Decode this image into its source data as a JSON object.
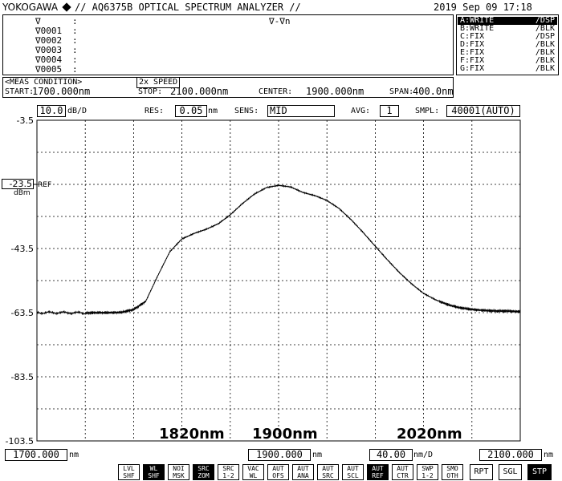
{
  "header": {
    "brand": "YOKOGAWA",
    "title": "// AQ6375B OPTICAL SPECTRUM ANALYZER //",
    "datetime": "2019 Sep 09 17:18"
  },
  "marker_panel": {
    "col_header": "∇-∇n",
    "rows": [
      "∇",
      "∇0001",
      "∇0002",
      "∇0003",
      "∇0004",
      "∇0005"
    ],
    "colon": ":"
  },
  "traces": [
    {
      "key": "A:WRITE",
      "mode": "/DSP",
      "active": true
    },
    {
      "key": "B:WRITE",
      "mode": "/BLK",
      "active": false
    },
    {
      "key": "C:FIX",
      "mode": "/DSP",
      "active": false
    },
    {
      "key": "D:FIX",
      "mode": "/BLK",
      "active": false
    },
    {
      "key": "E:FIX",
      "mode": "/BLK",
      "active": false
    },
    {
      "key": "F:FIX",
      "mode": "/BLK",
      "active": false
    },
    {
      "key": "G:FIX",
      "mode": "/BLK",
      "active": false
    }
  ],
  "meas": {
    "label": "<MEAS CONDITION>",
    "speed": "2x SPEED",
    "start_label": "START:",
    "start_value": "1700.000nm",
    "stop_label": "STOP:",
    "stop_value": "2100.000nm",
    "center_label": "CENTER:",
    "center_value": "1900.000nm",
    "span_label": "SPAN:",
    "span_value": "400.0nm"
  },
  "settings": {
    "scale_value": "10.0",
    "scale_unit": "dB/D",
    "res_label": "RES:",
    "res_value": "0.05",
    "res_unit": "nm",
    "sens_label": "SENS:",
    "sens_value": "MID",
    "avg_label": "AVG:",
    "avg_value": "1",
    "smpl_label": "SMPL:",
    "smpl_value": "40001(AUTO)"
  },
  "y_axis": {
    "ref_value": "-23.5",
    "ref_label": "REF",
    "unit": "dBm",
    "ticks": [
      "-3.5",
      "-43.5",
      "-63.5",
      "-83.5",
      "-103.5"
    ]
  },
  "annotations": [
    "1820nm",
    "1900nm",
    "2020nm"
  ],
  "bottom": {
    "start_value": "1700.000",
    "start_unit": "nm",
    "center_value": "1900.000",
    "center_unit": "nm",
    "div_value": "40.00",
    "div_unit": "nm/D",
    "stop_value": "2100.000",
    "stop_unit": "nm"
  },
  "buttons": [
    {
      "l1": "LVL",
      "l2": "SHF",
      "on": false
    },
    {
      "l1": "WL",
      "l2": "SHF",
      "on": true
    },
    {
      "l1": "NOI",
      "l2": "MSK",
      "on": false
    },
    {
      "l1": "SRC",
      "l2": "ZOM",
      "on": true
    },
    {
      "l1": "SRC",
      "l2": "1-2",
      "on": false
    },
    {
      "l1": "VAC",
      "l2": "WL",
      "on": false
    },
    {
      "l1": "AUT",
      "l2": "OFS",
      "on": false
    },
    {
      "l1": "AUT",
      "l2": "ANA",
      "on": false
    },
    {
      "l1": "AUT",
      "l2": "SRC",
      "on": false
    },
    {
      "l1": "AUT",
      "l2": "SCL",
      "on": false
    },
    {
      "l1": "AUT",
      "l2": "REF",
      "on": true
    },
    {
      "l1": "AUT",
      "l2": "CTR",
      "on": false
    },
    {
      "l1": "SWP",
      "l2": "1-2",
      "on": false
    },
    {
      "l1": "SMO",
      "l2": "OTH",
      "on": false
    }
  ],
  "sweep_buttons": [
    {
      "label": "RPT",
      "on": false
    },
    {
      "label": "SGL",
      "on": false
    },
    {
      "label": "STP",
      "on": true
    }
  ],
  "chart_data": {
    "type": "line",
    "xlabel": "",
    "ylabel": "",
    "xlim": [
      1700,
      2100
    ],
    "ylim": [
      -103.5,
      -3.5
    ],
    "x_unit": "nm",
    "y_unit": "dBm",
    "grid": true,
    "series": [
      {
        "color": "#000000",
        "x": [
          1700,
          1720,
          1740,
          1750,
          1760,
          1770,
          1780,
          1790,
          1800,
          1810,
          1820,
          1830,
          1840,
          1850,
          1860,
          1870,
          1880,
          1890,
          1900,
          1910,
          1920,
          1930,
          1940,
          1950,
          1960,
          1970,
          1980,
          1990,
          2000,
          2010,
          2020,
          2030,
          2040,
          2050,
          2060,
          2070,
          2080,
          2090,
          2100
        ],
        "y": [
          -63.5,
          -63.5,
          -63.6,
          -63.5,
          -63.5,
          -63.4,
          -62.5,
          -60.0,
          -52.0,
          -44.5,
          -40.5,
          -38.8,
          -37.5,
          -35.8,
          -33.0,
          -29.5,
          -26.5,
          -24.5,
          -23.8,
          -24.3,
          -26.0,
          -27.0,
          -28.5,
          -31.0,
          -34.5,
          -38.5,
          -42.8,
          -47.0,
          -51.0,
          -54.5,
          -57.5,
          -59.5,
          -61.0,
          -62.0,
          -62.5,
          -62.8,
          -63.0,
          -63.0,
          -63.2
        ]
      }
    ]
  }
}
